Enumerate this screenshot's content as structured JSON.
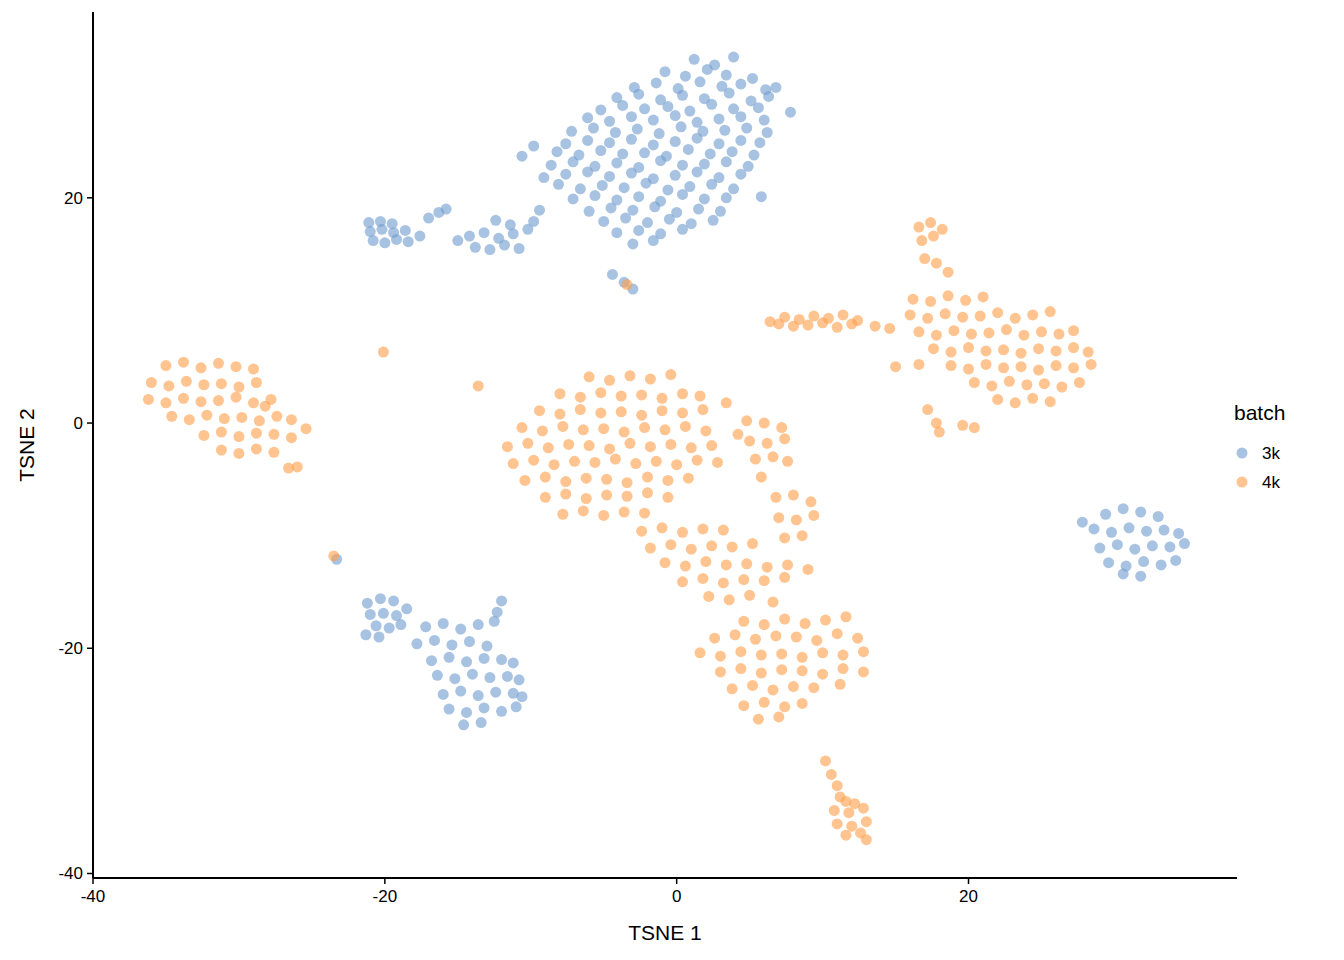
{
  "chart_data": {
    "type": "scatter",
    "x_label": "TSNE 1",
    "y_label": "TSNE 2",
    "legend_title": "batch",
    "legend": "right",
    "grid": false,
    "xlim": [
      -40,
      38.4
    ],
    "ylim": [
      -40.4,
      36.5
    ],
    "xticks": [
      -40,
      -20,
      0,
      20
    ],
    "yticks": [
      -40,
      -20,
      0,
      20
    ],
    "series": [
      {
        "name": "3k",
        "color": "#739ECF",
        "x": [
          1.2,
          2.6,
          3.9,
          -0.8,
          0.6,
          2.1,
          3.4,
          5.2,
          -2.9,
          -1.4,
          0.1,
          1.6,
          3.1,
          4.4,
          6.1,
          -4.1,
          -2.6,
          -1.1,
          0.4,
          1.9,
          3.6,
          5.1,
          6.3,
          -5.2,
          -3.7,
          -2.2,
          -0.6,
          0.9,
          2.4,
          3.9,
          5.6,
          -6.1,
          -4.6,
          -3.1,
          -1.6,
          -0.1,
          1.4,
          2.9,
          4.4,
          6.0,
          -7.2,
          -5.7,
          -4.2,
          -2.7,
          -1.2,
          0.3,
          1.8,
          3.3,
          4.8,
          6.2,
          -7.6,
          -6.1,
          -4.6,
          -3.1,
          -1.6,
          -0.1,
          1.4,
          2.9,
          4.4,
          5.7,
          -8.2,
          -6.7,
          -5.2,
          -3.7,
          -2.2,
          -0.7,
          0.8,
          2.3,
          3.8,
          5.3,
          -8.6,
          -7.1,
          -5.6,
          -4.1,
          -2.6,
          -1.1,
          0.4,
          1.9,
          3.4,
          4.9,
          -9.1,
          -7.6,
          -6.1,
          -4.6,
          -3.1,
          -1.6,
          -0.1,
          1.4,
          2.9,
          4.4,
          -8.1,
          -6.6,
          -5.1,
          -3.6,
          -2.1,
          -0.6,
          0.9,
          2.4,
          3.9,
          -7.1,
          -5.6,
          -4.1,
          -2.6,
          -1.1,
          0.4,
          1.9,
          3.4,
          -6.0,
          -4.5,
          -3.0,
          -1.5,
          0.0,
          1.5,
          3.0,
          -5.0,
          -3.5,
          -2.0,
          -0.5,
          1.0,
          2.5,
          -4.1,
          -2.6,
          -1.1,
          0.4,
          -3.0,
          -1.6,
          7.8,
          6.8,
          -4.4,
          -3.6,
          -3.0,
          5.8,
          -9.8,
          -10.6,
          -14.2,
          -13.2,
          -12.2,
          -11.2,
          -10.2,
          -13.8,
          -12.8,
          -11.8,
          -10.8,
          -9.8,
          -12.4,
          -11.4,
          -15.0,
          -9.4,
          -21.0,
          -20.2,
          -19.4,
          -18.6,
          -20.8,
          -20.0,
          -19.2,
          -18.4,
          -17.6,
          -21.1,
          -20.3,
          -19.5,
          -17.0,
          -16.3,
          -15.8,
          -21.2,
          -20.3,
          -19.4,
          -21.0,
          -20.1,
          -19.2,
          -18.5,
          -20.6,
          -19.7,
          -18.9,
          -21.3,
          -20.4,
          -17.2,
          -16.0,
          -14.8,
          -13.6,
          -17.8,
          -16.6,
          -15.4,
          -14.2,
          -13.0,
          -16.8,
          -15.6,
          -14.4,
          -13.2,
          -12.0,
          -11.2,
          -16.4,
          -15.2,
          -14.0,
          -12.8,
          -11.6,
          -10.8,
          -16.0,
          -14.8,
          -13.6,
          -12.4,
          -11.2,
          -10.6,
          -15.6,
          -14.4,
          -13.2,
          -12.0,
          -11.0,
          -14.6,
          -13.4,
          -12.0,
          -12.3,
          -12.5,
          -23.3,
          29.4,
          30.6,
          31.8,
          33.0,
          28.6,
          29.8,
          31.0,
          32.2,
          33.4,
          34.4,
          29.0,
          30.2,
          31.4,
          32.6,
          33.8,
          34.8,
          29.6,
          30.8,
          32.0,
          33.2,
          34.2,
          30.6,
          31.8,
          27.8
        ],
        "values": [
          32.3,
          31.8,
          32.5,
          31.2,
          30.8,
          31.4,
          30.9,
          30.6,
          29.8,
          30.2,
          29.7,
          30.3,
          29.9,
          30.1,
          29.6,
          28.9,
          29.2,
          28.7,
          29.1,
          28.8,
          29.3,
          28.6,
          29.0,
          27.8,
          28.2,
          27.9,
          28.1,
          27.7,
          28.3,
          27.9,
          28.0,
          27.1,
          26.8,
          27.2,
          26.9,
          27.3,
          26.7,
          27.0,
          27.2,
          26.9,
          25.9,
          26.2,
          25.8,
          26.1,
          25.7,
          26.3,
          25.9,
          26.0,
          26.2,
          25.8,
          24.8,
          25.1,
          24.9,
          25.2,
          24.7,
          25.0,
          25.3,
          24.8,
          25.1,
          24.9,
          24.1,
          23.8,
          24.2,
          23.9,
          24.0,
          23.7,
          24.3,
          23.9,
          24.1,
          23.8,
          22.9,
          23.2,
          22.8,
          23.1,
          22.7,
          23.3,
          22.9,
          23.0,
          23.2,
          22.8,
          21.8,
          22.1,
          22.3,
          21.9,
          22.2,
          21.7,
          22.0,
          22.3,
          21.8,
          22.1,
          21.2,
          20.8,
          21.1,
          20.9,
          21.3,
          20.7,
          21.0,
          21.2,
          20.8,
          19.9,
          20.2,
          19.8,
          20.1,
          19.7,
          20.3,
          19.9,
          20.0,
          18.8,
          19.1,
          18.9,
          19.2,
          18.7,
          19.0,
          18.8,
          17.9,
          18.2,
          17.8,
          18.1,
          17.7,
          18.0,
          16.9,
          17.1,
          16.8,
          17.2,
          15.9,
          16.2,
          27.6,
          29.8,
          13.2,
          12.5,
          11.9,
          20.1,
          24.6,
          23.7,
          16.6,
          16.9,
          16.4,
          16.8,
          17.2,
          15.6,
          15.4,
          15.8,
          15.5,
          17.9,
          18.0,
          17.6,
          16.2,
          18.9,
          17.0,
          17.2,
          16.9,
          17.1,
          16.2,
          16.0,
          16.3,
          16.1,
          16.6,
          17.8,
          17.9,
          17.7,
          18.2,
          18.7,
          19.0,
          -16.0,
          -15.6,
          -15.8,
          -17.0,
          -16.9,
          -17.1,
          -16.5,
          -18.0,
          -18.2,
          -17.9,
          -18.8,
          -19.0,
          -18.1,
          -17.8,
          -18.3,
          -17.9,
          -19.6,
          -19.3,
          -19.7,
          -19.4,
          -19.8,
          -21.1,
          -20.8,
          -21.2,
          -20.9,
          -21.0,
          -21.3,
          -22.4,
          -22.7,
          -22.3,
          -22.6,
          -22.5,
          -22.8,
          -24.1,
          -23.8,
          -24.2,
          -23.9,
          -24.0,
          -24.3,
          -25.4,
          -25.7,
          -25.3,
          -25.6,
          -25.2,
          -26.8,
          -26.6,
          -15.8,
          -16.8,
          -17.6,
          -12.1,
          -8.1,
          -7.6,
          -7.9,
          -8.3,
          -9.4,
          -9.7,
          -9.3,
          -9.6,
          -9.5,
          -9.8,
          -11.1,
          -10.8,
          -11.2,
          -10.9,
          -11.0,
          -10.7,
          -12.4,
          -12.7,
          -12.3,
          -12.6,
          -12.2,
          -13.4,
          -13.6,
          -8.8
        ]
      },
      {
        "name": "4k",
        "color": "#FFA04C",
        "x": [
          -35.0,
          -33.8,
          -32.6,
          -31.4,
          -30.2,
          -29.0,
          -36.0,
          -34.8,
          -33.6,
          -32.4,
          -31.2,
          -30.0,
          -28.8,
          -36.2,
          -35.0,
          -33.8,
          -32.6,
          -31.4,
          -30.2,
          -29.0,
          -27.8,
          -34.6,
          -33.4,
          -32.2,
          -31.0,
          -29.8,
          -28.6,
          -27.4,
          -26.4,
          -32.4,
          -31.2,
          -30.0,
          -28.8,
          -27.6,
          -26.4,
          -25.4,
          -31.2,
          -30.0,
          -28.8,
          -27.6,
          -26.6,
          -26.0,
          -28.2,
          -6.0,
          -4.6,
          -3.2,
          -1.8,
          -0.4,
          -8.0,
          -6.6,
          -5.2,
          -3.8,
          -2.4,
          -1.0,
          0.4,
          1.6,
          -9.4,
          -8.0,
          -6.6,
          -5.2,
          -3.8,
          -2.4,
          -1.0,
          0.4,
          1.8,
          -10.6,
          -9.2,
          -7.8,
          -6.4,
          -5.0,
          -3.6,
          -2.2,
          -0.8,
          0.6,
          2.0,
          -11.6,
          -10.2,
          -8.8,
          -7.4,
          -6.0,
          -4.6,
          -3.2,
          -1.8,
          -0.4,
          1.0,
          2.4,
          -11.2,
          -9.8,
          -8.4,
          -7.0,
          -5.6,
          -4.2,
          -2.8,
          -1.4,
          0.0,
          1.4,
          2.8,
          -10.4,
          -9.0,
          -7.6,
          -6.2,
          -4.8,
          -3.4,
          -2.0,
          -0.6,
          0.8,
          -9.0,
          -7.6,
          -6.2,
          -4.8,
          -3.4,
          -2.0,
          -0.6,
          -7.8,
          -6.4,
          -5.0,
          -3.6,
          -2.2,
          3.4,
          4.2,
          -3.4,
          -13.6,
          -20.1,
          -23.5,
          4.8,
          6.0,
          7.2,
          5.0,
          6.2,
          7.4,
          5.4,
          6.6,
          7.6,
          5.8,
          6.8,
          8.0,
          9.2,
          7.0,
          8.2,
          9.4,
          7.4,
          8.6,
          -2.4,
          -1.0,
          0.4,
          1.8,
          3.2,
          -1.8,
          -0.4,
          1.0,
          2.4,
          3.8,
          5.2,
          -0.8,
          0.6,
          2.0,
          3.4,
          4.8,
          6.2,
          7.6,
          9.0,
          0.4,
          1.8,
          3.2,
          4.6,
          6.0,
          7.4,
          2.2,
          3.6,
          5.0,
          6.6,
          4.6,
          6.0,
          7.4,
          8.8,
          10.2,
          11.6,
          2.6,
          4.0,
          5.4,
          6.8,
          8.2,
          9.6,
          11.0,
          12.4,
          1.6,
          3.0,
          4.4,
          5.8,
          7.2,
          8.6,
          10.0,
          11.4,
          12.8,
          3.0,
          4.4,
          5.8,
          7.2,
          8.6,
          10.0,
          11.4,
          12.8,
          3.8,
          5.2,
          6.6,
          8.0,
          9.4,
          11.2,
          4.6,
          6.0,
          7.4,
          8.6,
          5.6,
          7.0,
          10.2,
          10.6,
          11.0,
          11.2,
          11.6,
          12.2,
          10.8,
          11.8,
          12.8,
          11.0,
          12.0,
          13.0,
          11.6,
          12.6,
          13.0,
          6.4,
          7.4,
          8.4,
          9.4,
          10.4,
          11.4,
          12.4,
          7.0,
          8.0,
          9.0,
          10.0,
          11.0,
          12.0,
          14.6,
          16.6,
          17.4,
          18.2,
          16.8,
          17.6,
          17.0,
          17.8,
          18.6,
          16.2,
          17.4,
          18.6,
          19.8,
          21.0,
          16.0,
          17.2,
          18.4,
          19.6,
          20.8,
          22.0,
          23.2,
          24.4,
          25.6,
          16.6,
          17.8,
          19.0,
          20.2,
          21.4,
          22.6,
          23.8,
          25.0,
          26.2,
          27.2,
          17.6,
          18.8,
          20.0,
          21.2,
          22.4,
          23.6,
          24.8,
          26.0,
          27.2,
          28.2,
          18.8,
          20.0,
          21.2,
          22.4,
          23.6,
          24.8,
          26.0,
          27.2,
          28.4,
          20.4,
          21.6,
          22.8,
          24.0,
          25.2,
          26.4,
          27.6,
          22.0,
          23.2,
          24.4,
          25.6,
          17.2,
          17.8,
          18.0,
          19.6,
          20.4,
          16.6,
          15.0,
          13.6
        ],
        "values": [
          5.1,
          5.4,
          4.9,
          5.3,
          5.0,
          4.8,
          3.6,
          3.3,
          3.7,
          3.4,
          3.5,
          3.2,
          3.6,
          2.1,
          1.8,
          2.2,
          1.9,
          2.0,
          2.3,
          1.8,
          2.1,
          0.6,
          0.3,
          0.7,
          0.4,
          0.5,
          0.2,
          0.6,
          0.3,
          -1.1,
          -0.8,
          -1.2,
          -0.9,
          -1.0,
          -1.3,
          -0.5,
          -2.4,
          -2.7,
          -2.3,
          -2.6,
          -4.0,
          -3.9,
          1.5,
          4.1,
          3.8,
          4.2,
          3.9,
          4.3,
          2.6,
          2.3,
          2.7,
          2.4,
          2.5,
          2.2,
          2.6,
          2.4,
          1.1,
          0.8,
          1.2,
          0.9,
          1.0,
          0.7,
          1.1,
          0.9,
          1.2,
          -0.4,
          -0.7,
          -0.3,
          -0.6,
          -0.5,
          -0.8,
          -0.4,
          -0.6,
          -0.3,
          -0.7,
          -2.1,
          -1.8,
          -2.2,
          -1.9,
          -2.0,
          -2.3,
          -1.8,
          -2.1,
          -1.9,
          -2.2,
          -2.0,
          -3.6,
          -3.3,
          -3.7,
          -3.4,
          -3.5,
          -3.2,
          -3.6,
          -3.4,
          -3.7,
          -3.3,
          -3.5,
          -5.1,
          -4.8,
          -5.2,
          -4.9,
          -5.0,
          -5.3,
          -4.8,
          -5.1,
          -4.9,
          -6.6,
          -6.3,
          -6.7,
          -6.4,
          -6.5,
          -6.2,
          -6.6,
          -8.1,
          -7.8,
          -8.2,
          -7.9,
          -8.0,
          1.8,
          -1.0,
          12.3,
          3.3,
          6.3,
          -11.8,
          0.2,
          0.0,
          -0.4,
          -1.6,
          -1.8,
          -1.4,
          -3.2,
          -3.0,
          -3.4,
          -4.8,
          -6.6,
          -6.4,
          -7.0,
          -8.4,
          -8.6,
          -8.2,
          -10.2,
          -10.0,
          -9.6,
          -9.3,
          -9.7,
          -9.4,
          -9.5,
          -11.1,
          -10.8,
          -11.2,
          -10.9,
          -11.0,
          -10.7,
          -12.4,
          -12.7,
          -12.3,
          -12.6,
          -12.5,
          -12.8,
          -12.6,
          -13.0,
          -14.1,
          -13.8,
          -14.2,
          -13.9,
          -14.0,
          -13.7,
          -15.4,
          -15.7,
          -15.3,
          -15.9,
          -17.6,
          -17.9,
          -17.4,
          -17.8,
          -17.5,
          -17.2,
          -19.1,
          -18.8,
          -19.2,
          -18.9,
          -19.0,
          -19.3,
          -18.7,
          -19.1,
          -20.4,
          -20.7,
          -20.3,
          -20.6,
          -20.5,
          -20.8,
          -20.4,
          -20.6,
          -20.3,
          -22.1,
          -21.8,
          -22.2,
          -21.9,
          -22.0,
          -22.3,
          -21.8,
          -22.1,
          -23.6,
          -23.3,
          -23.7,
          -23.4,
          -23.5,
          -23.2,
          -25.1,
          -24.8,
          -25.2,
          -24.9,
          -26.3,
          -26.1,
          -30.0,
          -31.2,
          -32.2,
          -33.2,
          -33.6,
          -33.8,
          -34.4,
          -34.6,
          -34.2,
          -35.6,
          -35.8,
          -35.4,
          -36.6,
          -36.4,
          -37.0,
          9.0,
          9.4,
          9.2,
          9.5,
          9.3,
          9.6,
          9.1,
          8.8,
          8.6,
          8.7,
          8.9,
          8.5,
          8.8,
          8.4,
          17.4,
          17.8,
          17.2,
          16.2,
          16.6,
          14.6,
          14.2,
          13.4,
          11.0,
          10.8,
          11.3,
          10.9,
          11.2,
          9.6,
          9.3,
          9.7,
          9.4,
          9.5,
          9.8,
          9.3,
          9.6,
          9.9,
          8.1,
          7.8,
          8.2,
          7.9,
          8.0,
          8.3,
          7.8,
          8.1,
          7.9,
          8.2,
          6.6,
          6.3,
          6.7,
          6.4,
          6.5,
          6.2,
          6.6,
          6.4,
          6.7,
          6.3,
          5.1,
          4.8,
          5.2,
          4.9,
          5.0,
          4.7,
          5.1,
          4.9,
          5.2,
          3.6,
          3.3,
          3.7,
          3.4,
          3.5,
          3.2,
          3.6,
          2.1,
          1.8,
          2.2,
          1.9,
          1.2,
          0.0,
          -0.8,
          -0.2,
          -0.4,
          5.2,
          5.0,
          8.6
        ]
      }
    ]
  }
}
